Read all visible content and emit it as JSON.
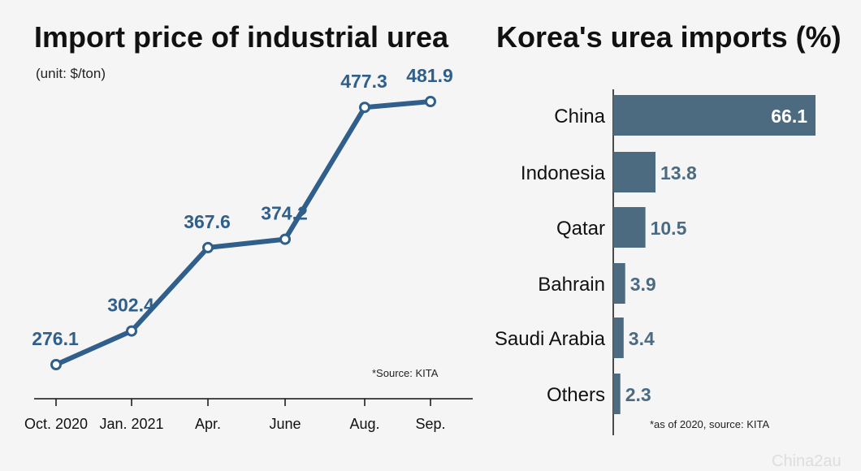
{
  "colors": {
    "series": "#2f5f8a",
    "bar": "#4c6a80",
    "bar_label": "#4c6a80",
    "background": "#f5f5f5"
  },
  "watermark": "China2au",
  "chart_data": [
    {
      "type": "line",
      "title": "Import price of industrial urea",
      "subtitle": "(unit: $/ton)",
      "x": [
        "Oct. 2020",
        "Jan. 2021",
        "Apr.",
        "June",
        "Aug.",
        "Sep."
      ],
      "values": [
        276.1,
        302.4,
        367.6,
        374.2,
        477.3,
        481.9
      ],
      "value_labels": [
        "276.1",
        "302.4",
        "367.6",
        "374.2",
        "477.3",
        "481.9"
      ],
      "ylim": [
        260,
        500
      ],
      "grid": false,
      "source_note": "*Source: KITA"
    },
    {
      "type": "bar",
      "orientation": "horizontal",
      "title": "Korea's urea imports (%)",
      "categories": [
        "China",
        "Indonesia",
        "Qatar",
        "Bahrain",
        "Saudi Arabia",
        "Others"
      ],
      "values": [
        66.1,
        13.8,
        10.5,
        3.9,
        3.4,
        2.3
      ],
      "value_labels": [
        "66.1",
        "13.8",
        "10.5",
        "3.9",
        "3.4",
        "2.3"
      ],
      "xlim": [
        0,
        66.1
      ],
      "grid": false,
      "source_note": "*as of 2020, source: KITA"
    }
  ]
}
